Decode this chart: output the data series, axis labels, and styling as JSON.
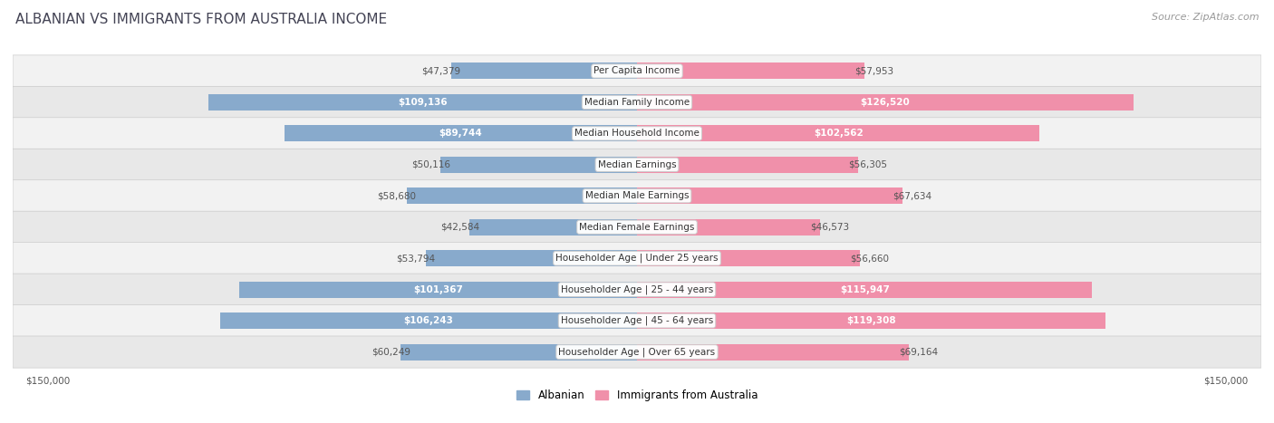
{
  "title": "ALBANIAN VS IMMIGRANTS FROM AUSTRALIA INCOME",
  "source": "Source: ZipAtlas.com",
  "categories": [
    "Per Capita Income",
    "Median Family Income",
    "Median Household Income",
    "Median Earnings",
    "Median Male Earnings",
    "Median Female Earnings",
    "Householder Age | Under 25 years",
    "Householder Age | 25 - 44 years",
    "Householder Age | 45 - 64 years",
    "Householder Age | Over 65 years"
  ],
  "albanian": [
    47379,
    109136,
    89744,
    50116,
    58680,
    42584,
    53794,
    101367,
    106243,
    60249
  ],
  "australia": [
    57953,
    126520,
    102562,
    56305,
    67634,
    46573,
    56660,
    115947,
    119308,
    69164
  ],
  "albanian_color": "#88aacc",
  "australia_color": "#f090aa",
  "albanian_label_color_threshold": 80000,
  "australia_label_color_threshold": 80000,
  "bar_height": 0.52,
  "max_value": 150000,
  "row_colors": [
    "#f2f2f2",
    "#e8e8e8"
  ],
  "title_color": "#444455",
  "source_color": "#999999",
  "title_fontsize": 11,
  "source_fontsize": 8,
  "value_fontsize": 7.5,
  "category_fontsize": 7.5,
  "legend_fontsize": 8.5,
  "outside_label_color": "#555555",
  "inside_label_color": "#ffffff"
}
